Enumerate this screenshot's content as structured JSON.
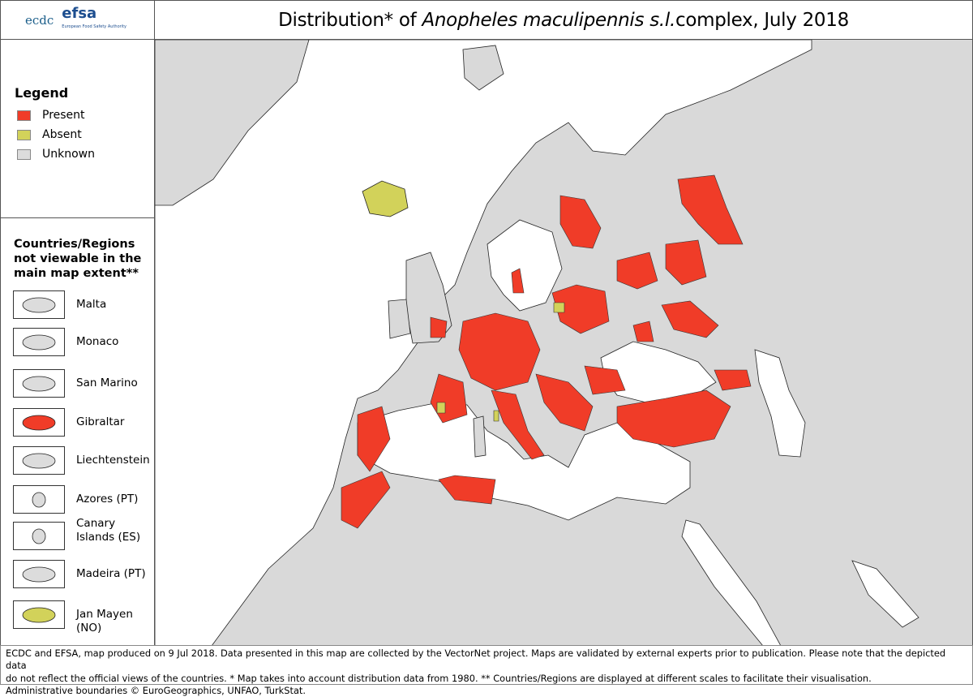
{
  "header": {
    "logos": {
      "ecdc": "ecdc",
      "efsa": "efsa",
      "efsa_subtitle": "European Food Safety Authority"
    },
    "title_prefix": "Distribution* of ",
    "title_species": "Anopheles maculipennis s.l.",
    "title_suffix": " complex, July 2018"
  },
  "legend": {
    "title": "Legend",
    "items": [
      {
        "label": "Present",
        "color": "#f03c28"
      },
      {
        "label": "Absent",
        "color": "#d2d25a"
      },
      {
        "label": "Unknown",
        "color": "#dcdcdc"
      }
    ]
  },
  "insets": {
    "title": "Countries/Regions not viewable in the main map extent**",
    "items": [
      {
        "label": "Malta",
        "status": "Unknown"
      },
      {
        "label": "Monaco",
        "status": "Unknown"
      },
      {
        "label": "San Marino",
        "status": "Unknown"
      },
      {
        "label": "Gibraltar",
        "status": "Present"
      },
      {
        "label": "Liechtenstein",
        "status": "Unknown"
      },
      {
        "label": "Azores (PT)",
        "status": "Unknown"
      },
      {
        "label": "Canary Islands (ES)",
        "status": "Unknown"
      },
      {
        "label": "Madeira (PT)",
        "status": "Unknown"
      },
      {
        "label": "Jan Mayen (NO)",
        "status": "Absent"
      }
    ]
  },
  "map": {
    "colors": {
      "sea": "#ffffff",
      "land": "#d9d9d9",
      "border": "#3a3a3a",
      "present": "#f03c28",
      "absent": "#d2d25a"
    }
  },
  "footer": {
    "line1": "ECDC and EFSA, map produced on 9 Jul 2018. Data presented in this map are collected by the VectorNet project. Maps are validated by external experts prior to publication. Please note that the depicted data",
    "line2": "do not reflect the official views of the countries. * Map takes into account distribution data from 1980. ** Countries/Regions are displayed at different scales to facilitate their visualisation.",
    "line3": "Administrative boundaries © EuroGeographics, UNFAO, TurkStat."
  }
}
